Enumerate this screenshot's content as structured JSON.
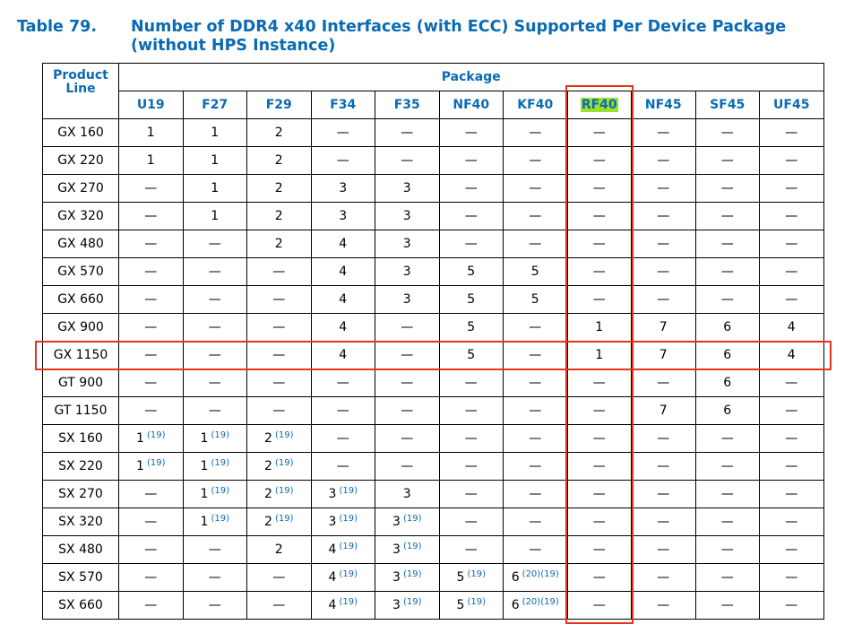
{
  "caption": {
    "number": "Table 79.",
    "title": "Number of DDR4 x40 Interfaces (with ECC) Supported Per Device Package (without HPS Instance)"
  },
  "table": {
    "row_header": "Product Line",
    "group_header": "Package",
    "columns": [
      {
        "label": "U19",
        "highlight": false
      },
      {
        "label": "F27",
        "highlight": false
      },
      {
        "label": "F29",
        "highlight": false
      },
      {
        "label": "F34",
        "highlight": false
      },
      {
        "label": "F35",
        "highlight": false
      },
      {
        "label": "NF40",
        "highlight": false
      },
      {
        "label": "KF40",
        "highlight": false
      },
      {
        "label": "RF40",
        "highlight": true
      },
      {
        "label": "NF45",
        "highlight": false
      },
      {
        "label": "SF45",
        "highlight": false
      },
      {
        "label": "UF45",
        "highlight": false
      }
    ],
    "highlight_color": "#9be02a",
    "footnote_color": "#0a6ab3",
    "rows": [
      {
        "label": "GX 160",
        "cells": [
          {
            "v": "1"
          },
          {
            "v": "1"
          },
          {
            "v": "2"
          },
          {
            "v": "—"
          },
          {
            "v": "—"
          },
          {
            "v": "—"
          },
          {
            "v": "—"
          },
          {
            "v": "—"
          },
          {
            "v": "—"
          },
          {
            "v": "—"
          },
          {
            "v": "—"
          }
        ]
      },
      {
        "label": "GX 220",
        "cells": [
          {
            "v": "1"
          },
          {
            "v": "1"
          },
          {
            "v": "2"
          },
          {
            "v": "—"
          },
          {
            "v": "—"
          },
          {
            "v": "—"
          },
          {
            "v": "—"
          },
          {
            "v": "—"
          },
          {
            "v": "—"
          },
          {
            "v": "—"
          },
          {
            "v": "—"
          }
        ]
      },
      {
        "label": "GX 270",
        "cells": [
          {
            "v": "—"
          },
          {
            "v": "1"
          },
          {
            "v": "2"
          },
          {
            "v": "3"
          },
          {
            "v": "3"
          },
          {
            "v": "—"
          },
          {
            "v": "—"
          },
          {
            "v": "—"
          },
          {
            "v": "—"
          },
          {
            "v": "—"
          },
          {
            "v": "—"
          }
        ]
      },
      {
        "label": "GX 320",
        "cells": [
          {
            "v": "—"
          },
          {
            "v": "1"
          },
          {
            "v": "2"
          },
          {
            "v": "3"
          },
          {
            "v": "3"
          },
          {
            "v": "—"
          },
          {
            "v": "—"
          },
          {
            "v": "—"
          },
          {
            "v": "—"
          },
          {
            "v": "—"
          },
          {
            "v": "—"
          }
        ]
      },
      {
        "label": "GX 480",
        "cells": [
          {
            "v": "—"
          },
          {
            "v": "—"
          },
          {
            "v": "2"
          },
          {
            "v": "4"
          },
          {
            "v": "3"
          },
          {
            "v": "—"
          },
          {
            "v": "—"
          },
          {
            "v": "—"
          },
          {
            "v": "—"
          },
          {
            "v": "—"
          },
          {
            "v": "—"
          }
        ]
      },
      {
        "label": "GX 570",
        "cells": [
          {
            "v": "—"
          },
          {
            "v": "—"
          },
          {
            "v": "—"
          },
          {
            "v": "4"
          },
          {
            "v": "3"
          },
          {
            "v": "5"
          },
          {
            "v": "5"
          },
          {
            "v": "—"
          },
          {
            "v": "—"
          },
          {
            "v": "—"
          },
          {
            "v": "—"
          }
        ]
      },
      {
        "label": "GX 660",
        "cells": [
          {
            "v": "—"
          },
          {
            "v": "—"
          },
          {
            "v": "—"
          },
          {
            "v": "4"
          },
          {
            "v": "3"
          },
          {
            "v": "5"
          },
          {
            "v": "5"
          },
          {
            "v": "—"
          },
          {
            "v": "—"
          },
          {
            "v": "—"
          },
          {
            "v": "—"
          }
        ]
      },
      {
        "label": "GX 900",
        "cells": [
          {
            "v": "—"
          },
          {
            "v": "—"
          },
          {
            "v": "—"
          },
          {
            "v": "4"
          },
          {
            "v": "—"
          },
          {
            "v": "5"
          },
          {
            "v": "—"
          },
          {
            "v": "1"
          },
          {
            "v": "7"
          },
          {
            "v": "6"
          },
          {
            "v": "4"
          }
        ]
      },
      {
        "label": "GX 1150",
        "cells": [
          {
            "v": "—"
          },
          {
            "v": "—"
          },
          {
            "v": "—"
          },
          {
            "v": "4"
          },
          {
            "v": "—"
          },
          {
            "v": "5"
          },
          {
            "v": "—"
          },
          {
            "v": "1"
          },
          {
            "v": "7"
          },
          {
            "v": "6"
          },
          {
            "v": "4"
          }
        ]
      },
      {
        "label": "GT 900",
        "cells": [
          {
            "v": "—"
          },
          {
            "v": "—"
          },
          {
            "v": "—"
          },
          {
            "v": "—"
          },
          {
            "v": "—"
          },
          {
            "v": "—"
          },
          {
            "v": "—"
          },
          {
            "v": "—"
          },
          {
            "v": "—"
          },
          {
            "v": "6"
          },
          {
            "v": "—"
          }
        ]
      },
      {
        "label": "GT 1150",
        "cells": [
          {
            "v": "—"
          },
          {
            "v": "—"
          },
          {
            "v": "—"
          },
          {
            "v": "—"
          },
          {
            "v": "—"
          },
          {
            "v": "—"
          },
          {
            "v": "—"
          },
          {
            "v": "—"
          },
          {
            "v": "7"
          },
          {
            "v": "6"
          },
          {
            "v": "—"
          }
        ]
      },
      {
        "label": "SX 160",
        "cells": [
          {
            "v": "1",
            "fn": "(19)"
          },
          {
            "v": "1",
            "fn": "(19)"
          },
          {
            "v": "2",
            "fn": "(19)"
          },
          {
            "v": "—"
          },
          {
            "v": "—"
          },
          {
            "v": "—"
          },
          {
            "v": "—"
          },
          {
            "v": "—"
          },
          {
            "v": "—"
          },
          {
            "v": "—"
          },
          {
            "v": "—"
          }
        ]
      },
      {
        "label": "SX 220",
        "cells": [
          {
            "v": "1",
            "fn": "(19)"
          },
          {
            "v": "1",
            "fn": "(19)"
          },
          {
            "v": "2",
            "fn": "(19)"
          },
          {
            "v": "—"
          },
          {
            "v": "—"
          },
          {
            "v": "—"
          },
          {
            "v": "—"
          },
          {
            "v": "—"
          },
          {
            "v": "—"
          },
          {
            "v": "—"
          },
          {
            "v": "—"
          }
        ]
      },
      {
        "label": "SX 270",
        "cells": [
          {
            "v": "—"
          },
          {
            "v": "1",
            "fn": "(19)"
          },
          {
            "v": "2",
            "fn": "(19)"
          },
          {
            "v": "3",
            "fn": "(19)"
          },
          {
            "v": "3"
          },
          {
            "v": "—"
          },
          {
            "v": "—"
          },
          {
            "v": "—"
          },
          {
            "v": "—"
          },
          {
            "v": "—"
          },
          {
            "v": "—"
          }
        ]
      },
      {
        "label": "SX 320",
        "cells": [
          {
            "v": "—"
          },
          {
            "v": "1",
            "fn": "(19)"
          },
          {
            "v": "2",
            "fn": "(19)"
          },
          {
            "v": "3",
            "fn": "(19)"
          },
          {
            "v": "3",
            "fn": "(19)"
          },
          {
            "v": "—"
          },
          {
            "v": "—"
          },
          {
            "v": "—"
          },
          {
            "v": "—"
          },
          {
            "v": "—"
          },
          {
            "v": "—"
          }
        ]
      },
      {
        "label": "SX 480",
        "cells": [
          {
            "v": "—"
          },
          {
            "v": "—"
          },
          {
            "v": "2"
          },
          {
            "v": "4",
            "fn": "(19)"
          },
          {
            "v": "3",
            "fn": "(19)"
          },
          {
            "v": "—"
          },
          {
            "v": "—"
          },
          {
            "v": "—"
          },
          {
            "v": "—"
          },
          {
            "v": "—"
          },
          {
            "v": "—"
          }
        ]
      },
      {
        "label": "SX 570",
        "cells": [
          {
            "v": "—"
          },
          {
            "v": "—"
          },
          {
            "v": "—"
          },
          {
            "v": "4",
            "fn": "(19)"
          },
          {
            "v": "3",
            "fn": "(19)"
          },
          {
            "v": "5",
            "fn": "(19)"
          },
          {
            "v": "6",
            "fn": "(20)(19)"
          },
          {
            "v": "—"
          },
          {
            "v": "—"
          },
          {
            "v": "—"
          },
          {
            "v": "—"
          }
        ]
      },
      {
        "label": "SX 660",
        "cells": [
          {
            "v": "—"
          },
          {
            "v": "—"
          },
          {
            "v": "—"
          },
          {
            "v": "4",
            "fn": "(19)"
          },
          {
            "v": "3",
            "fn": "(19)"
          },
          {
            "v": "5",
            "fn": "(19)"
          },
          {
            "v": "6",
            "fn": "(20)(19)"
          },
          {
            "v": "—"
          },
          {
            "v": "—"
          },
          {
            "v": "—"
          },
          {
            "v": "—"
          }
        ]
      }
    ]
  },
  "annotations": {
    "color": "#e2341d",
    "highlighted_column": "RF40",
    "highlighted_row": "GX 1150"
  }
}
